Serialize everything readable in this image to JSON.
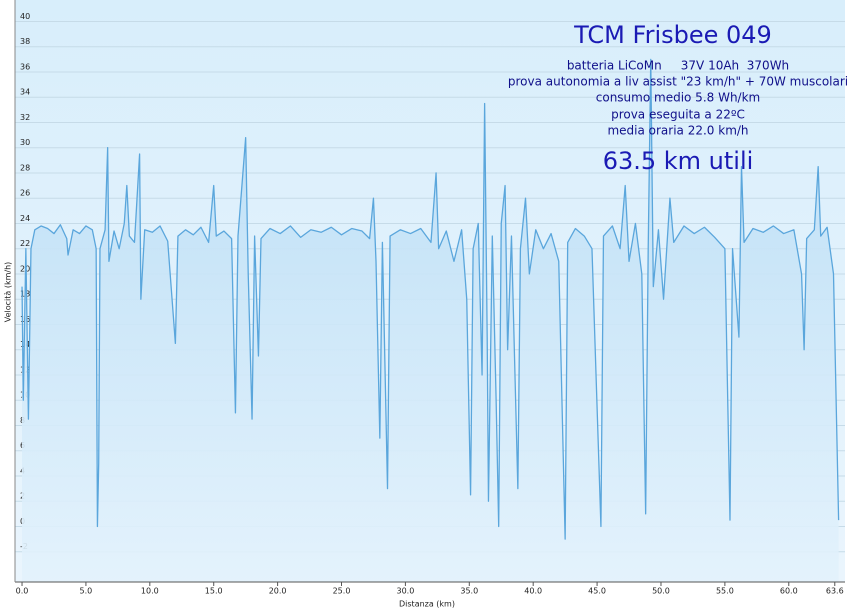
{
  "chart_data": {
    "type": "area",
    "title": "TCM Frisbee 049",
    "annotations": [
      "batteria LiCoMn     37V 10Ah  370Wh",
      "prova autonomia a liv assist \"23 km/h\" + 70W muscolari",
      "consumo medio 5.8 Wh/km",
      "prova eseguita a 22ºC",
      "media oraria 22.0 km/h",
      "63.5 km utili"
    ],
    "x_label": "Distanza (km)",
    "y_label": "Velocità (km/h)",
    "color": "#5aa6dc",
    "grid": true,
    "xlim": [
      -0.55,
      64.4
    ],
    "ylim": [
      -4.4,
      41.7
    ],
    "xticks": [
      {
        "value": 0,
        "label": "0.0"
      },
      {
        "value": 5,
        "label": "5.0"
      },
      {
        "value": 10,
        "label": "10.0"
      },
      {
        "value": 15,
        "label": "15.0"
      },
      {
        "value": 20,
        "label": "20.0"
      },
      {
        "value": 25,
        "label": "25.0"
      },
      {
        "value": 30,
        "label": "30.0"
      },
      {
        "value": 35,
        "label": "35.0"
      },
      {
        "value": 40,
        "label": "40.0"
      },
      {
        "value": 45,
        "label": "45.0"
      },
      {
        "value": 50,
        "label": "50.0"
      },
      {
        "value": 55,
        "label": "55.0"
      },
      {
        "value": 60,
        "label": "60.0"
      },
      63.6
    ],
    "yticks": [
      -2,
      0,
      2,
      4,
      6,
      8,
      10,
      12,
      14,
      16,
      18,
      20,
      22,
      24,
      26,
      28,
      30,
      32,
      34,
      36,
      38,
      40
    ],
    "x": [
      0.0,
      0.1,
      0.3,
      0.5,
      0.7,
      1.0,
      1.5,
      2.0,
      2.5,
      3.0,
      3.5,
      3.6,
      4.0,
      4.5,
      5.0,
      5.5,
      5.8,
      5.9,
      6.0,
      6.1,
      6.5,
      6.7,
      6.8,
      7.2,
      7.6,
      8.0,
      8.2,
      8.4,
      8.8,
      9.2,
      9.3,
      9.6,
      10.2,
      10.8,
      11.4,
      12.0,
      12.2,
      12.8,
      13.4,
      14.0,
      14.6,
      15.0,
      15.2,
      15.8,
      16.4,
      16.7,
      16.9,
      17.5,
      17.7,
      18.0,
      18.2,
      18.5,
      18.7,
      19.4,
      20.2,
      21.0,
      21.8,
      22.6,
      23.4,
      24.2,
      25.0,
      25.8,
      26.6,
      27.2,
      27.5,
      27.7,
      28.0,
      28.2,
      28.6,
      28.8,
      29.6,
      30.4,
      31.2,
      32.0,
      32.4,
      32.6,
      33.2,
      33.8,
      34.4,
      34.8,
      35.1,
      35.3,
      35.7,
      36.0,
      36.2,
      36.4,
      36.5,
      36.8,
      37.1,
      37.3,
      37.5,
      37.8,
      38.0,
      38.3,
      38.8,
      39.0,
      39.4,
      39.7,
      40.2,
      40.8,
      41.4,
      42.0,
      42.5,
      42.7,
      43.3,
      44.0,
      44.6,
      45.3,
      45.5,
      46.2,
      46.8,
      47.2,
      47.5,
      48.0,
      48.5,
      48.8,
      49.0,
      49.2,
      49.4,
      49.8,
      50.2,
      50.7,
      51.0,
      51.8,
      52.6,
      53.4,
      54.2,
      55.0,
      55.4,
      55.6,
      56.1,
      56.3,
      56.5,
      57.2,
      58.0,
      58.8,
      59.6,
      60.4,
      61.0,
      61.2,
      61.4,
      62.0,
      62.3,
      62.5,
      63.0,
      63.5,
      63.9
    ],
    "values": [
      19,
      10,
      22,
      8.5,
      22,
      23.5,
      23.8,
      23.6,
      23.2,
      23.9,
      22.8,
      21.5,
      23.5,
      23.2,
      23.8,
      23.5,
      22,
      0,
      5,
      22,
      23.5,
      30,
      21,
      23.4,
      22,
      24,
      27,
      23,
      22.5,
      29.5,
      18,
      23.5,
      23.3,
      23.8,
      22.6,
      14.5,
      23,
      23.5,
      23.1,
      23.7,
      22.5,
      27,
      23,
      23.4,
      22.8,
      9,
      23,
      30.8,
      20,
      8.5,
      23,
      13.5,
      22.8,
      23.6,
      23.2,
      23.8,
      22.9,
      23.5,
      23.3,
      23.7,
      23.1,
      23.6,
      23.4,
      22.8,
      26,
      21,
      7,
      22.5,
      3,
      23,
      23.5,
      23.2,
      23.6,
      22.5,
      28,
      22,
      23.4,
      21,
      23.5,
      18,
      2.5,
      22,
      24,
      12,
      33.5,
      15,
      2,
      23,
      10,
      0,
      24,
      27,
      14,
      23,
      3,
      22,
      26,
      20,
      23.5,
      22,
      23.2,
      21,
      -1,
      22.5,
      23.6,
      23,
      22,
      0,
      23,
      23.8,
      22,
      27,
      21,
      24,
      20,
      1,
      22,
      37,
      19,
      23.5,
      18,
      26,
      22.5,
      23.8,
      23.2,
      23.7,
      22.9,
      22,
      0.5,
      22,
      15,
      28.5,
      22.5,
      23.6,
      23.3,
      23.8,
      23.2,
      23.5,
      20,
      14,
      22.8,
      23.5,
      28.5,
      23,
      23.7,
      20,
      0.5
    ]
  }
}
